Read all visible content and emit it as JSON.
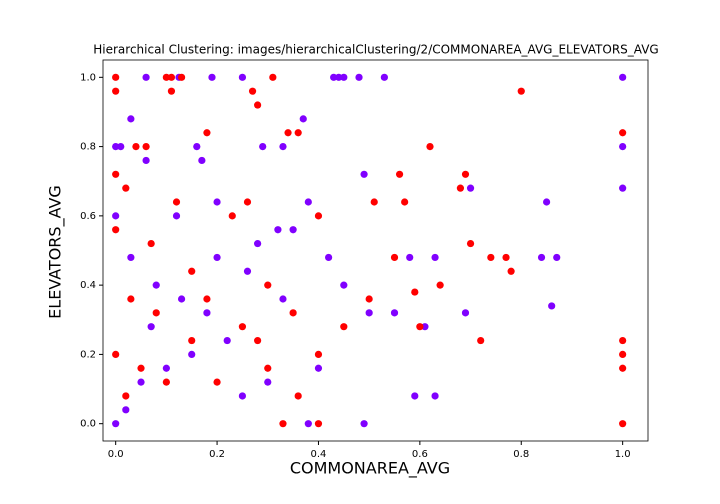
{
  "chart_data": {
    "type": "scatter",
    "title": "Hierarchical Clustering: images/hierarchicalClustering/2/COMMONAREA_AVG_ELEVATORS_AVG",
    "x_label": "COMMONAREA_AVG",
    "y_label": "ELEVATORS_AVG",
    "xlim": [
      -0.025,
      1.05
    ],
    "ylim": [
      -0.05,
      1.05
    ],
    "xticks": [
      {
        "value": 0,
        "label": "0.0"
      },
      {
        "value": 0.2,
        "label": "0.2"
      },
      {
        "value": 0.4,
        "label": "0.4"
      },
      {
        "value": 0.6,
        "label": "0.6"
      },
      {
        "value": 0.8,
        "label": "0.8"
      },
      {
        "value": 1,
        "label": "1.0"
      }
    ],
    "yticks": [
      {
        "value": 0,
        "label": "0.0"
      },
      {
        "value": 0.2,
        "label": "0.2"
      },
      {
        "value": 0.4,
        "label": "0.4"
      },
      {
        "value": 0.6,
        "label": "0.6"
      },
      {
        "value": 0.8,
        "label": "0.8"
      },
      {
        "value": 1,
        "label": "1.0"
      }
    ],
    "series": [
      {
        "color": "#8000ff",
        "x": [
          0.06,
          0.125,
          0.19,
          0.25,
          0.43,
          0.44,
          0.45,
          0.48,
          0.53,
          1.0,
          0.03,
          0.37,
          0.0,
          0.01,
          0.16,
          0.29,
          0.33,
          1.0,
          0.06,
          0.17,
          0.49,
          0.7,
          1.0,
          0.85,
          0.2,
          0.38,
          0.0,
          0.12,
          0.35,
          0.32,
          0.58,
          0.63,
          0.84,
          0.87,
          0.42,
          0.86,
          0.55,
          0.5,
          0.45,
          0.61,
          0.69,
          0.33,
          0.26,
          0.22,
          0.15,
          0.05,
          0.02,
          0.1,
          0.07,
          0.18,
          0.4,
          0.3,
          0.49,
          0.59,
          0.63,
          0.38,
          0.25,
          0.0,
          0.03,
          0.08,
          0.13,
          0.2,
          0.28
        ],
        "values": [
          1.0,
          1.0,
          1.0,
          1.0,
          1.0,
          1.0,
          1.0,
          1.0,
          1.0,
          1.0,
          0.88,
          0.88,
          0.8,
          0.8,
          0.8,
          0.8,
          0.8,
          0.8,
          0.76,
          0.76,
          0.72,
          0.68,
          0.68,
          0.64,
          0.64,
          0.64,
          0.6,
          0.6,
          0.56,
          0.56,
          0.48,
          0.48,
          0.48,
          0.48,
          0.48,
          0.34,
          0.32,
          0.32,
          0.4,
          0.28,
          0.32,
          0.36,
          0.44,
          0.24,
          0.2,
          0.12,
          0.04,
          0.16,
          0.28,
          0.32,
          0.16,
          0.12,
          0.0,
          0.08,
          0.08,
          0.0,
          0.08,
          0.0,
          0.48,
          0.4,
          0.36,
          0.48,
          0.52
        ]
      },
      {
        "color": "#ff0000",
        "x": [
          0.0,
          0.0,
          0.1,
          0.11,
          0.13,
          0.11,
          0.27,
          0.28,
          0.8,
          0.31,
          0.06,
          0.04,
          0.18,
          0.34,
          0.36,
          0.62,
          0.0,
          0.02,
          0.56,
          0.69,
          0.68,
          0.57,
          0.51,
          0.0,
          0.7,
          0.74,
          0.77,
          0.78,
          0.55,
          0.59,
          0.64,
          0.72,
          1.0,
          1.0,
          1.0,
          1.0,
          1.0,
          0.3,
          0.35,
          0.45,
          0.5,
          0.6,
          0.4,
          0.25,
          0.15,
          0.05,
          0.02,
          0.1,
          0.08,
          0.2,
          0.3,
          0.4,
          0.33,
          0.15,
          0.07,
          0.12,
          0.23,
          0.26,
          0.4,
          0.0,
          0.03,
          0.18,
          0.28,
          0.36
        ],
        "values": [
          1.0,
          0.96,
          1.0,
          1.0,
          1.0,
          0.96,
          0.96,
          0.92,
          0.96,
          1.0,
          0.8,
          0.8,
          0.84,
          0.84,
          0.84,
          0.8,
          0.72,
          0.68,
          0.72,
          0.72,
          0.68,
          0.64,
          0.64,
          0.56,
          0.52,
          0.48,
          0.48,
          0.44,
          0.48,
          0.38,
          0.4,
          0.24,
          0.84,
          0.24,
          0.2,
          0.16,
          0.0,
          0.4,
          0.32,
          0.28,
          0.36,
          0.28,
          0.2,
          0.28,
          0.24,
          0.16,
          0.08,
          0.12,
          0.32,
          0.12,
          0.16,
          0.0,
          0.0,
          0.44,
          0.52,
          0.64,
          0.6,
          0.64,
          0.6,
          0.2,
          0.36,
          0.36,
          0.24,
          0.08
        ]
      }
    ]
  }
}
